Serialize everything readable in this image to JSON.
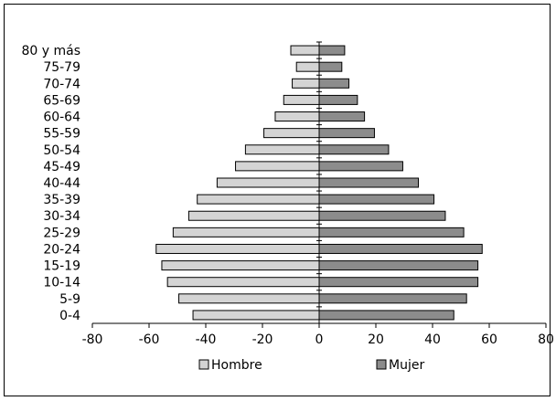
{
  "chart_data": {
    "type": "bar",
    "orientation": "horizontal",
    "subtype": "population-pyramid",
    "categories": [
      "0-4",
      "5-9",
      "10-14",
      "15-19",
      "20-24",
      "25-29",
      "30-34",
      "35-39",
      "40-44",
      "45-49",
      "50-54",
      "55-59",
      "60-64",
      "65-69",
      "70-74",
      "75-79",
      "80 y más"
    ],
    "series": [
      {
        "name": "Hombre",
        "color": "#d4d4d4",
        "values": [
          -44.5,
          -49.5,
          -53.5,
          -55.5,
          -57.5,
          -51.5,
          -46,
          -43,
          -36,
          -29.5,
          -26,
          -19.5,
          -15.5,
          -12.5,
          -9.5,
          -8,
          -10
        ]
      },
      {
        "name": "Mujer",
        "color": "#8c8c8c",
        "values": [
          47.5,
          52,
          56,
          56,
          57.5,
          51,
          44.5,
          40.5,
          35,
          29.5,
          24.5,
          19.5,
          16,
          13.5,
          10.5,
          8,
          9
        ]
      }
    ],
    "xlim": [
      -80,
      80
    ],
    "xticks": [
      "-80",
      "-60",
      "-40",
      "-20",
      "0",
      "20",
      "40",
      "60",
      "80"
    ],
    "legend_position": "bottom",
    "grid": false
  }
}
